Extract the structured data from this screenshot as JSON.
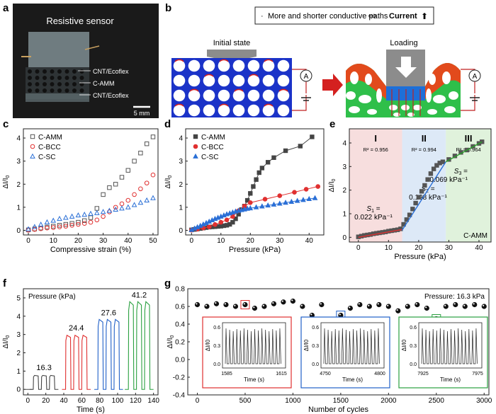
{
  "panel_labels": {
    "a": "a",
    "b": "b",
    "c": "c",
    "d": "d",
    "e": "e",
    "f": "f",
    "g": "g"
  },
  "panel_a": {
    "title": "Resistive sensor",
    "layers": [
      "CNT/Ecoflex",
      "C-AMM",
      "CNT/Ecoflex"
    ],
    "scale_bar": "5 mm"
  },
  "panel_b": {
    "note_bullet": "·",
    "note_text": "More and shorter conductive paths",
    "note_arrow": "⇨",
    "note_current": "Current",
    "note_up": "⬆",
    "initial_state": "Initial state",
    "loading": "Loading",
    "ammeter": "A",
    "colors": {
      "blue": "#1b33c8",
      "red_arrow": "#d4201f"
    }
  },
  "chart_data": [
    {
      "id": "c",
      "type": "scatter",
      "xlabel": "Compressive strain (%)",
      "ylabel": "ΔI/I0",
      "xlim": [
        -2,
        52
      ],
      "ylim": [
        -0.2,
        4.4
      ],
      "xticks": [
        "0",
        "10",
        "20",
        "30",
        "40",
        "50"
      ],
      "yticks": [
        "0",
        "1",
        "2",
        "3",
        "4"
      ],
      "series": [
        {
          "name": "C-AMM",
          "marker": "square",
          "color": "#555555",
          "x": [
            0,
            2.5,
            5,
            7.5,
            10,
            12.5,
            15,
            17.5,
            20,
            22.5,
            25,
            27.5,
            30,
            32.5,
            35,
            37.5,
            40,
            42.5,
            45,
            47.5,
            50
          ],
          "y": [
            0.02,
            0.06,
            0.1,
            0.14,
            0.18,
            0.22,
            0.26,
            0.3,
            0.35,
            0.42,
            0.55,
            0.95,
            1.55,
            1.85,
            2.0,
            2.3,
            2.6,
            3.0,
            3.35,
            3.75,
            4.05
          ]
        },
        {
          "name": "C-BCC",
          "marker": "circle",
          "color": "#e03030",
          "x": [
            0,
            2.5,
            5,
            7.5,
            10,
            12.5,
            15,
            17.5,
            20,
            22.5,
            25,
            27.5,
            30,
            32.5,
            35,
            37.5,
            40,
            42.5,
            45,
            47.5,
            50
          ],
          "y": [
            0.01,
            0.04,
            0.07,
            0.1,
            0.12,
            0.15,
            0.18,
            0.22,
            0.26,
            0.3,
            0.35,
            0.45,
            0.6,
            0.8,
            1.0,
            1.15,
            1.3,
            1.55,
            1.8,
            2.05,
            2.4
          ]
        },
        {
          "name": "C-SC",
          "marker": "triangle",
          "color": "#2a6fd6",
          "x": [
            0,
            2.5,
            5,
            7.5,
            10,
            12.5,
            15,
            17.5,
            20,
            22.5,
            25,
            27.5,
            30,
            32.5,
            35,
            37.5,
            40,
            42.5,
            45,
            47.5,
            50
          ],
          "y": [
            0.05,
            0.15,
            0.25,
            0.35,
            0.42,
            0.5,
            0.55,
            0.6,
            0.65,
            0.68,
            0.72,
            0.75,
            0.8,
            0.85,
            0.9,
            0.95,
            1.0,
            1.1,
            1.2,
            1.3,
            1.4
          ]
        }
      ]
    },
    {
      "id": "d",
      "type": "line",
      "xlabel": "Pressure (kPa)",
      "ylabel": "ΔI/I0",
      "xlim": [
        -2,
        45
      ],
      "ylim": [
        -0.2,
        4.4
      ],
      "xticks": [
        "0",
        "10",
        "20",
        "30",
        "40"
      ],
      "yticks": [
        "0",
        "1",
        "2",
        "3",
        "4"
      ],
      "series": [
        {
          "name": "C-AMM",
          "marker": "square",
          "color": "#444444",
          "x": [
            0,
            1,
            2,
            3,
            4,
            5,
            6,
            7,
            8,
            9,
            10,
            11,
            12,
            13,
            14,
            15,
            16,
            17,
            18,
            19,
            20,
            21,
            22,
            23,
            24,
            26,
            28,
            32,
            37,
            41
          ],
          "y": [
            0.02,
            0.04,
            0.06,
            0.08,
            0.1,
            0.12,
            0.14,
            0.15,
            0.16,
            0.17,
            0.18,
            0.2,
            0.22,
            0.26,
            0.35,
            0.5,
            0.7,
            0.9,
            1.05,
            1.3,
            1.6,
            1.9,
            2.2,
            2.5,
            2.7,
            2.95,
            3.15,
            3.45,
            3.65,
            4.05
          ]
        },
        {
          "name": "C-BCC",
          "marker": "circle",
          "color": "#e03030",
          "x": [
            0,
            2,
            4,
            6,
            8,
            10,
            12,
            14,
            16,
            18,
            20,
            25,
            30,
            35,
            39,
            43
          ],
          "y": [
            0.01,
            0.05,
            0.1,
            0.15,
            0.25,
            0.35,
            0.45,
            0.6,
            0.85,
            1.05,
            1.2,
            1.35,
            1.5,
            1.65,
            1.78,
            1.9
          ]
        },
        {
          "name": "C-SC",
          "marker": "triangle",
          "color": "#2a6fd6",
          "x": [
            0,
            1,
            2,
            3,
            4,
            5,
            6,
            7,
            8,
            9,
            10,
            11,
            12,
            13,
            14,
            15,
            16,
            17,
            18,
            19,
            20,
            22,
            24,
            26,
            28,
            30,
            32,
            34,
            36,
            38,
            40,
            42
          ],
          "y": [
            0.02,
            0.08,
            0.14,
            0.2,
            0.26,
            0.32,
            0.38,
            0.44,
            0.5,
            0.55,
            0.6,
            0.65,
            0.7,
            0.74,
            0.78,
            0.82,
            0.85,
            0.88,
            0.91,
            0.94,
            0.96,
            1.0,
            1.04,
            1.08,
            1.12,
            1.16,
            1.2,
            1.24,
            1.28,
            1.32,
            1.36,
            1.4
          ]
        }
      ]
    },
    {
      "id": "e",
      "type": "line",
      "xlabel": "Pressure (kPa)",
      "ylabel": "ΔI/I0",
      "xlim": [
        -3,
        44
      ],
      "ylim": [
        -0.2,
        4.6
      ],
      "xticks": [
        "0",
        "10",
        "20",
        "30",
        "40"
      ],
      "yticks": [
        "0",
        "1",
        "2",
        "3",
        "4"
      ],
      "regions": [
        {
          "label": "I",
          "from": -3,
          "to": 14.5,
          "color": "#f7dede",
          "r2": "R² = 0.956",
          "slope_name": "S1",
          "slope": "0.022 kPa⁻¹"
        },
        {
          "label": "II",
          "from": 14.5,
          "to": 29,
          "color": "#dde9f7",
          "r2": "R² = 0.994",
          "slope_name": "S2",
          "slope": "0.198 kPa⁻¹"
        },
        {
          "label": "III",
          "from": 29,
          "to": 44,
          "color": "#e0f2dc",
          "r2": "R² = 0.964",
          "slope_name": "S3",
          "slope": "0.069 kPa⁻¹"
        }
      ],
      "legend": "C-AMM",
      "series": [
        {
          "name": "C-AMM",
          "marker": "square",
          "color": "#555555",
          "x": [
            0,
            1,
            2,
            3,
            4,
            5,
            6,
            7,
            8,
            9,
            10,
            11,
            12,
            13,
            14,
            15,
            16,
            17,
            18,
            19,
            20,
            21,
            22,
            23,
            24,
            25,
            26,
            27,
            28,
            30,
            32,
            34,
            36,
            38,
            40,
            41
          ],
          "y": [
            0.02,
            0.05,
            0.08,
            0.1,
            0.12,
            0.15,
            0.17,
            0.19,
            0.21,
            0.23,
            0.26,
            0.28,
            0.3,
            0.32,
            0.36,
            0.55,
            0.75,
            0.95,
            1.2,
            1.45,
            1.7,
            1.95,
            2.2,
            2.45,
            2.7,
            2.9,
            3.05,
            3.15,
            3.2,
            3.3,
            3.45,
            3.6,
            3.7,
            3.85,
            3.98,
            4.05
          ]
        },
        {
          "name": "fit-I",
          "line": "#e03030",
          "x": [
            0,
            14.5
          ],
          "y": [
            0.0,
            0.33
          ]
        },
        {
          "name": "fit-II",
          "line": "#2a6fd6",
          "x": [
            14.5,
            29
          ],
          "y": [
            0.3,
            3.2
          ]
        },
        {
          "name": "fit-III",
          "line": "#2aa02a",
          "x": [
            29,
            41
          ],
          "y": [
            3.2,
            4.05
          ]
        }
      ]
    },
    {
      "id": "f",
      "type": "line",
      "title": "Pressure (kPa)",
      "xlabel": "Time (s)",
      "ylabel": "ΔI/I0",
      "xlim": [
        -5,
        145
      ],
      "ylim": [
        -0.3,
        5.5
      ],
      "xticks": [
        "0",
        "20",
        "40",
        "60",
        "80",
        "100",
        "120",
        "140"
      ],
      "yticks": [
        "0",
        "1",
        "2",
        "3",
        "4",
        "5"
      ],
      "pulses": [
        {
          "label": "16.3",
          "color": "#444444",
          "starts": [
            6,
            15,
            24
          ],
          "width": 6,
          "level": 0.75
        },
        {
          "label": "24.4",
          "color": "#e03030",
          "starts": [
            42,
            51,
            60
          ],
          "width": 6,
          "level": 2.9
        },
        {
          "label": "27.6",
          "color": "#2060c8",
          "starts": [
            78,
            87,
            96
          ],
          "width": 6,
          "level": 3.75
        },
        {
          "label": "41.2",
          "color": "#2aa040",
          "starts": [
            112,
            121,
            130
          ],
          "width": 6,
          "level": 4.7
        }
      ]
    },
    {
      "id": "g",
      "type": "scatter",
      "xlabel": "Number of cycles",
      "ylabel": "ΔI/I0",
      "annotation": "Pressure: 16.3 kPa",
      "xlim": [
        -100,
        3050
      ],
      "ylim": [
        -0.4,
        0.8
      ],
      "xticks": [
        "0",
        "500",
        "1000",
        "1500",
        "2000",
        "2500",
        "3000"
      ],
      "yticks": [
        "-0.4",
        "-0.2",
        "0.0",
        "0.2",
        "0.4",
        "0.6",
        "0.8"
      ],
      "series": [
        {
          "name": "cycles",
          "marker": "ball",
          "color": "#111111",
          "x": [
            0,
            100,
            200,
            300,
            400,
            500,
            600,
            700,
            800,
            900,
            1000,
            1100,
            1200,
            1300,
            1400,
            1500,
            1600,
            1700,
            1800,
            1900,
            2000,
            2100,
            2200,
            2300,
            2400,
            2500,
            2600,
            2700,
            2800,
            2900,
            3000
          ],
          "y": [
            0.62,
            0.6,
            0.63,
            0.62,
            0.6,
            0.62,
            0.58,
            0.6,
            0.63,
            0.65,
            0.66,
            0.6,
            0.5,
            0.62,
            0.42,
            0.5,
            0.58,
            0.62,
            0.6,
            0.62,
            0.6,
            0.55,
            0.6,
            0.62,
            0.58,
            0.46,
            0.6,
            0.62,
            0.6,
            0.62,
            0.6
          ]
        }
      ],
      "highlights": [
        {
          "x": 500,
          "color": "#e03030"
        },
        {
          "x": 1500,
          "color": "#2060c8"
        },
        {
          "x": 2500,
          "color": "#2aa040"
        }
      ],
      "insets": [
        {
          "color": "#e03030",
          "xticks": [
            "1585",
            "1615"
          ],
          "yticks": [
            "0.6",
            "0.3",
            "0.0"
          ],
          "xlabel": "Time (s)",
          "ylabel": "ΔI/I0"
        },
        {
          "color": "#2060c8",
          "xticks": [
            "4750",
            "4800"
          ],
          "yticks": [
            "0.6",
            "0.3",
            "0.0"
          ],
          "xlabel": "Time (s)",
          "ylabel": "ΔI/I0"
        },
        {
          "color": "#2aa040",
          "xticks": [
            "7925",
            "7975"
          ],
          "yticks": [
            "0.6",
            "0.3",
            "0.0"
          ],
          "xlabel": "Time (s)",
          "ylabel": "ΔI/I0"
        }
      ]
    }
  ]
}
